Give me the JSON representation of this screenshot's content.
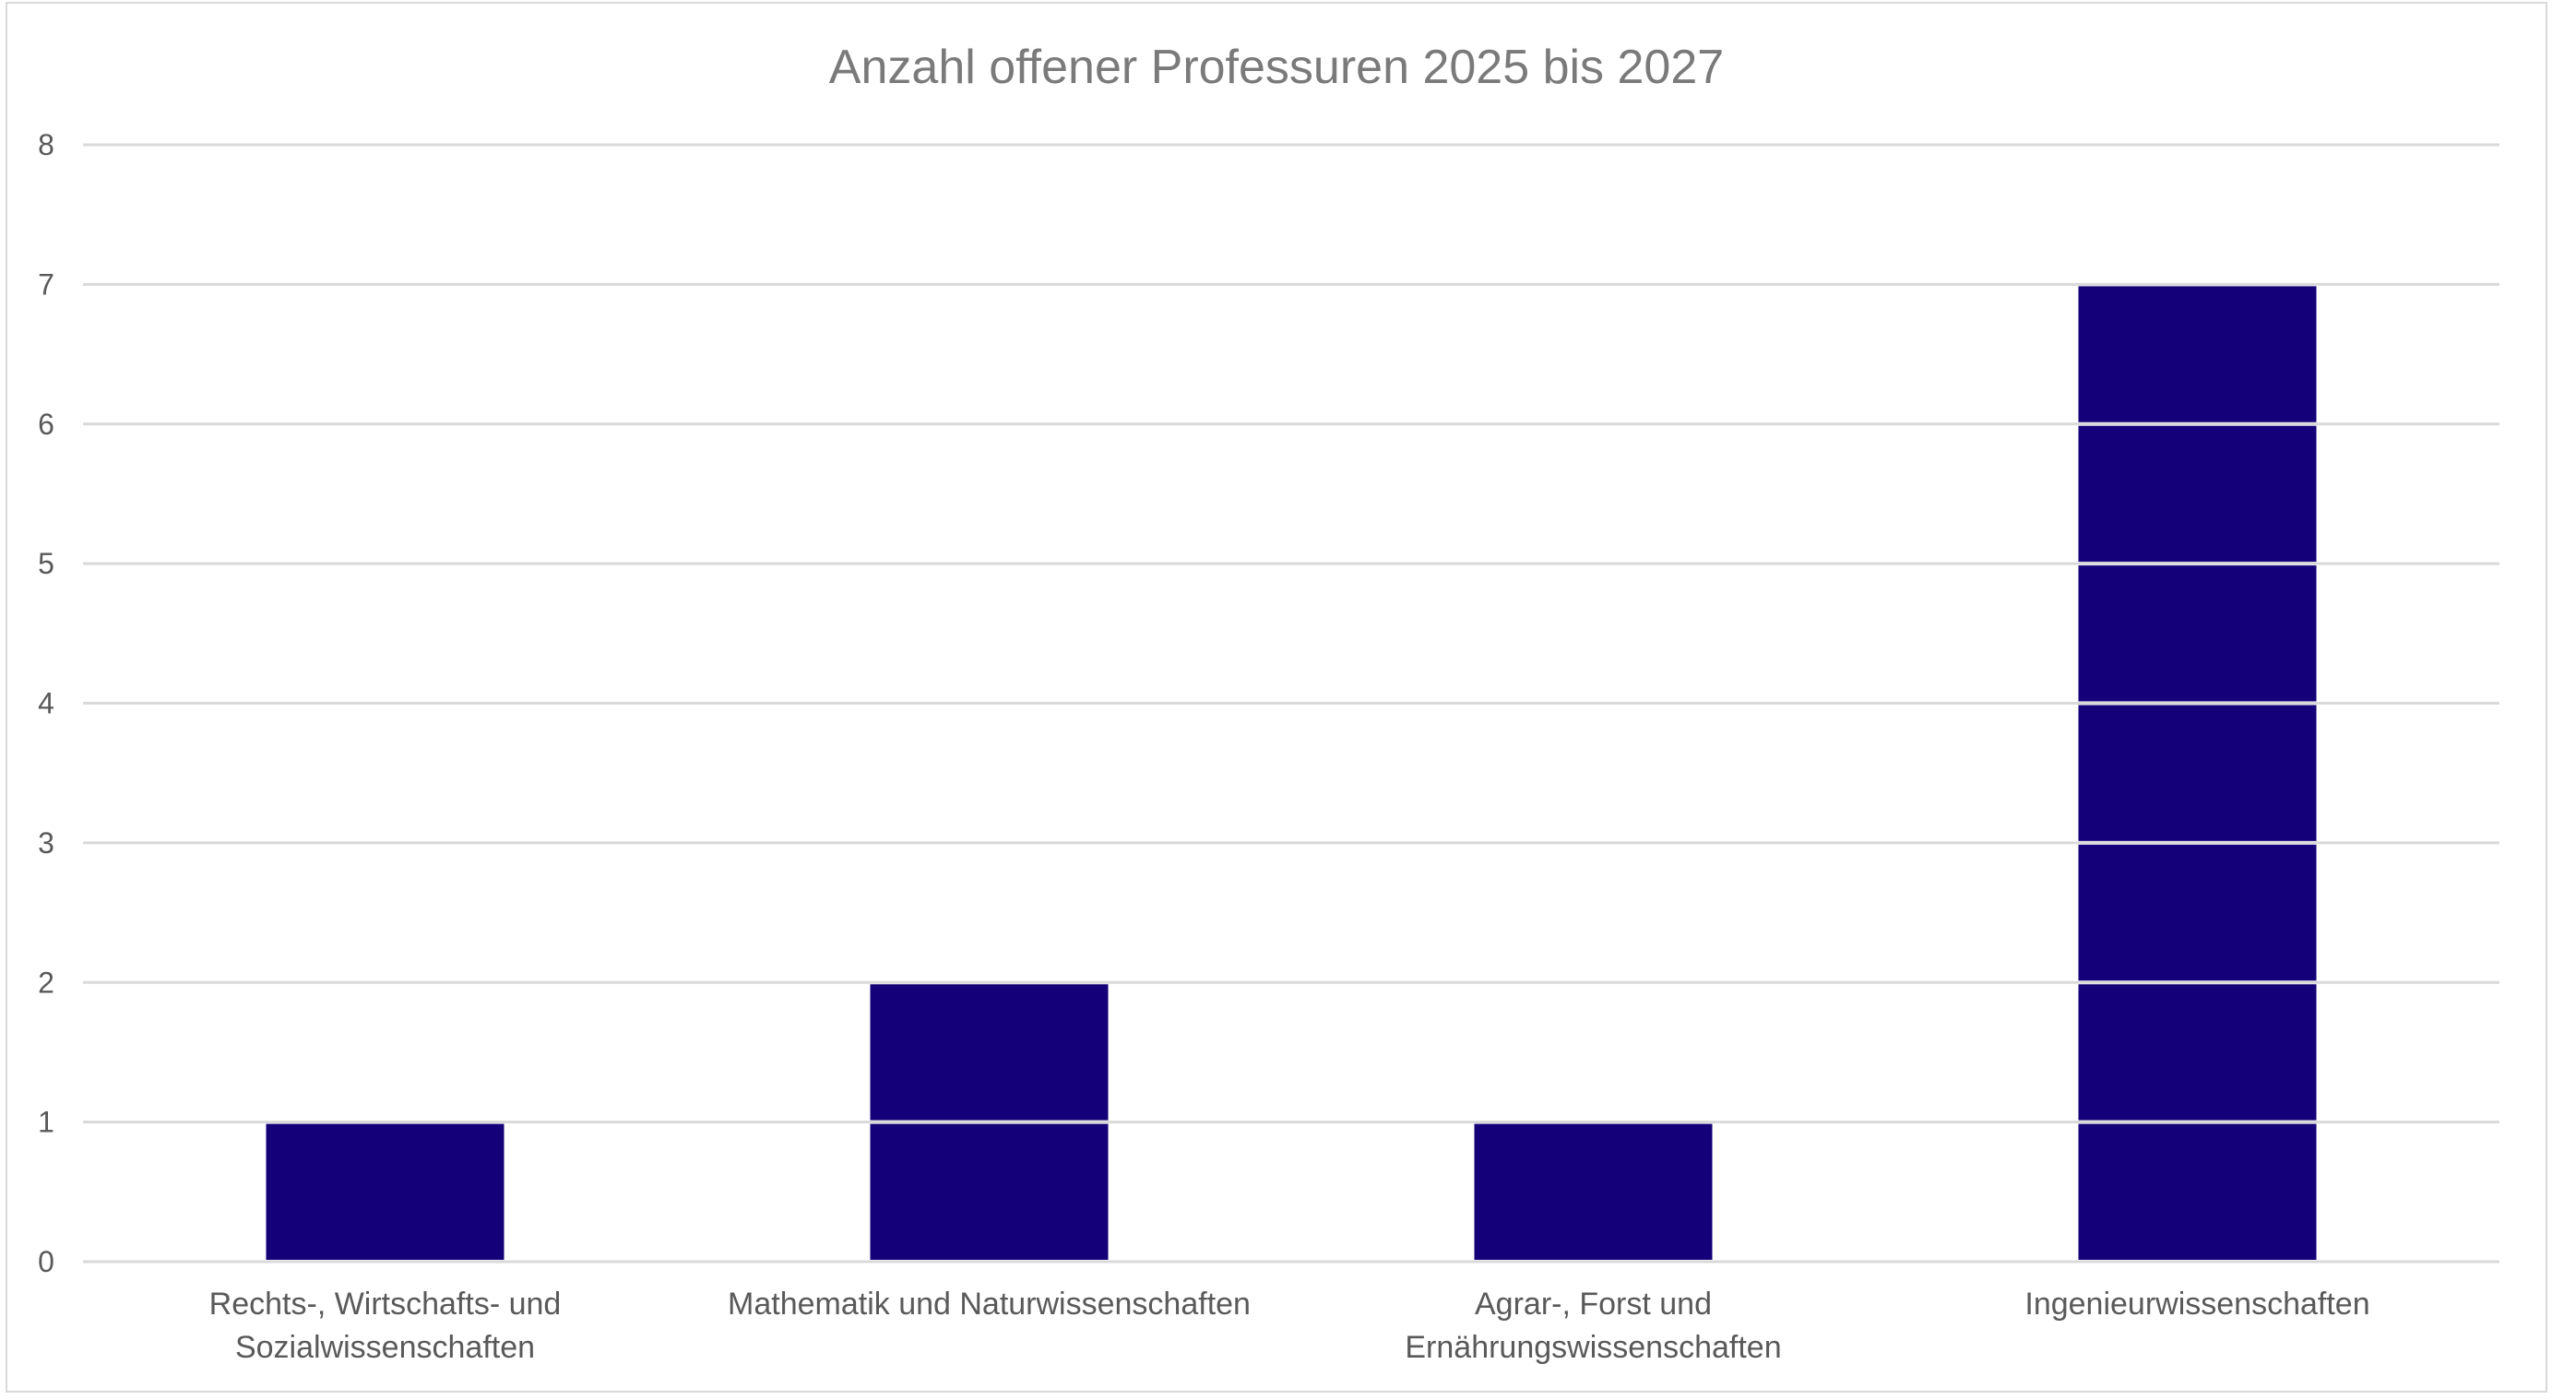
{
  "chart_data": {
    "type": "bar",
    "title": "Anzahl offener Professuren 2025 bis 2027",
    "categories": [
      [
        "Rechts-, Wirtschafts- und",
        "Sozialwissenschaften"
      ],
      [
        "Mathematik und Naturwissenschaften"
      ],
      [
        "Agrar-, Forst und",
        "Ernährungswissenschaften"
      ],
      [
        "Ingenieurwissenschaften"
      ]
    ],
    "values": [
      1,
      2,
      1,
      7
    ],
    "ylim": [
      0,
      8
    ],
    "yticks": [
      "0",
      "1",
      "2",
      "3",
      "4",
      "5",
      "6",
      "7",
      "8"
    ],
    "grid": true,
    "legend": "none",
    "bar_color": "#140078",
    "gridline_color": "#d9d9d9"
  }
}
